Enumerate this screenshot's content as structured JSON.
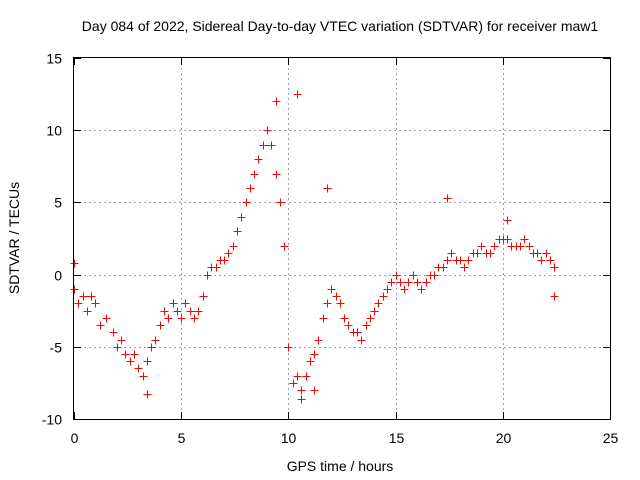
{
  "chart_data": {
    "type": "scatter",
    "title": "Day 084 of 2022, Sidereal Day-to-day VTEC variation (SDTVAR) for receiver maw1",
    "xlabel": "GPS time / hours",
    "ylabel": "SDTVAR / TECUs",
    "xlim": [
      0,
      25
    ],
    "ylim": [
      -10,
      15
    ],
    "xticks": [
      0,
      5,
      10,
      15,
      20,
      25
    ],
    "yticks": [
      -10,
      -5,
      0,
      5,
      10,
      15
    ],
    "xtick_labels": [
      "0",
      "5",
      "10",
      "15",
      "20",
      "25"
    ],
    "ytick_labels": [
      "-10",
      "-5",
      "0",
      "5",
      "10",
      "15"
    ],
    "grid": true,
    "marker": "+",
    "color": "#ff0000",
    "series": [
      {
        "name": "SDTVAR",
        "points": [
          [
            0.0,
            -1.0
          ],
          [
            0.2,
            -2.0
          ],
          [
            0.4,
            -1.5
          ],
          [
            0.6,
            -2.5
          ],
          [
            0.8,
            -1.5
          ],
          [
            1.0,
            -2.0
          ],
          [
            1.2,
            -3.5
          ],
          [
            1.5,
            -3.0
          ],
          [
            1.8,
            -4.0
          ],
          [
            2.0,
            -5.0
          ],
          [
            2.2,
            -4.5
          ],
          [
            2.4,
            -5.5
          ],
          [
            2.6,
            -6.0
          ],
          [
            2.8,
            -5.5
          ],
          [
            3.0,
            -6.5
          ],
          [
            3.2,
            -7.0
          ],
          [
            3.4,
            -6.0
          ],
          [
            3.6,
            -5.0
          ],
          [
            3.8,
            -4.5
          ],
          [
            4.0,
            -3.5
          ],
          [
            4.2,
            -2.5
          ],
          [
            4.4,
            -3.0
          ],
          [
            4.6,
            -2.0
          ],
          [
            4.8,
            -2.5
          ],
          [
            5.0,
            -3.0
          ],
          [
            5.2,
            -2.0
          ],
          [
            5.4,
            -2.5
          ],
          [
            5.6,
            -3.0
          ],
          [
            5.8,
            -2.5
          ],
          [
            6.0,
            -1.5
          ],
          [
            6.2,
            0.0
          ],
          [
            6.4,
            0.5
          ],
          [
            6.6,
            0.5
          ],
          [
            6.8,
            1.0
          ],
          [
            7.0,
            1.0
          ],
          [
            7.2,
            1.5
          ],
          [
            7.4,
            2.0
          ],
          [
            7.6,
            3.0
          ],
          [
            7.8,
            4.0
          ],
          [
            8.0,
            5.0
          ],
          [
            8.2,
            6.0
          ],
          [
            8.4,
            7.0
          ],
          [
            8.6,
            8.0
          ],
          [
            8.8,
            9.0
          ],
          [
            9.0,
            10.0
          ],
          [
            9.2,
            9.0
          ],
          [
            9.4,
            7.0
          ],
          [
            9.6,
            5.0
          ],
          [
            9.8,
            2.0
          ],
          [
            10.0,
            -5.0
          ],
          [
            10.2,
            -7.5
          ],
          [
            10.4,
            -7.0
          ],
          [
            10.6,
            -8.0
          ],
          [
            10.8,
            -7.0
          ],
          [
            11.0,
            -6.0
          ],
          [
            11.2,
            -5.5
          ],
          [
            11.4,
            -4.5
          ],
          [
            11.6,
            -3.0
          ],
          [
            11.8,
            -2.0
          ],
          [
            12.0,
            -1.0
          ],
          [
            12.2,
            -1.5
          ],
          [
            12.4,
            -2.0
          ],
          [
            12.6,
            -3.0
          ],
          [
            12.8,
            -3.5
          ],
          [
            13.0,
            -4.0
          ],
          [
            13.2,
            -4.0
          ],
          [
            13.4,
            -4.5
          ],
          [
            13.6,
            -3.5
          ],
          [
            13.8,
            -3.0
          ],
          [
            14.0,
            -2.5
          ],
          [
            14.2,
            -2.0
          ],
          [
            14.4,
            -1.5
          ],
          [
            14.6,
            -1.0
          ],
          [
            14.8,
            -0.5
          ],
          [
            15.0,
            0.0
          ],
          [
            15.2,
            -0.5
          ],
          [
            15.4,
            -1.0
          ],
          [
            15.6,
            -0.5
          ],
          [
            15.8,
            0.0
          ],
          [
            16.0,
            -0.5
          ],
          [
            16.2,
            -1.0
          ],
          [
            16.4,
            -0.5
          ],
          [
            16.6,
            0.0
          ],
          [
            16.8,
            0.0
          ],
          [
            17.0,
            0.5
          ],
          [
            17.2,
            0.5
          ],
          [
            17.4,
            1.0
          ],
          [
            17.6,
            1.5
          ],
          [
            17.8,
            1.0
          ],
          [
            18.0,
            1.0
          ],
          [
            18.2,
            0.5
          ],
          [
            18.4,
            1.0
          ],
          [
            18.6,
            1.5
          ],
          [
            18.8,
            1.5
          ],
          [
            19.0,
            2.0
          ],
          [
            19.2,
            1.5
          ],
          [
            19.4,
            1.5
          ],
          [
            19.6,
            2.0
          ],
          [
            19.8,
            2.5
          ],
          [
            20.0,
            2.5
          ],
          [
            20.2,
            2.5
          ],
          [
            20.4,
            2.0
          ],
          [
            20.6,
            2.0
          ],
          [
            20.8,
            2.0
          ],
          [
            21.0,
            2.5
          ],
          [
            21.2,
            2.0
          ],
          [
            21.4,
            1.5
          ],
          [
            21.6,
            1.5
          ],
          [
            21.8,
            1.0
          ],
          [
            22.0,
            1.5
          ],
          [
            22.2,
            1.0
          ],
          [
            22.4,
            0.5
          ]
        ],
        "notable_values": [
          [
            9.4,
            12.0
          ],
          [
            10.4,
            12.5
          ],
          [
            11.8,
            6.0
          ],
          [
            17.4,
            5.3
          ],
          [
            3.4,
            -8.3
          ],
          [
            10.6,
            -8.6
          ],
          [
            11.2,
            -8.0
          ],
          [
            20.2,
            3.8
          ],
          [
            22.4,
            -1.5
          ],
          [
            0.0,
            0.8
          ]
        ]
      }
    ]
  }
}
